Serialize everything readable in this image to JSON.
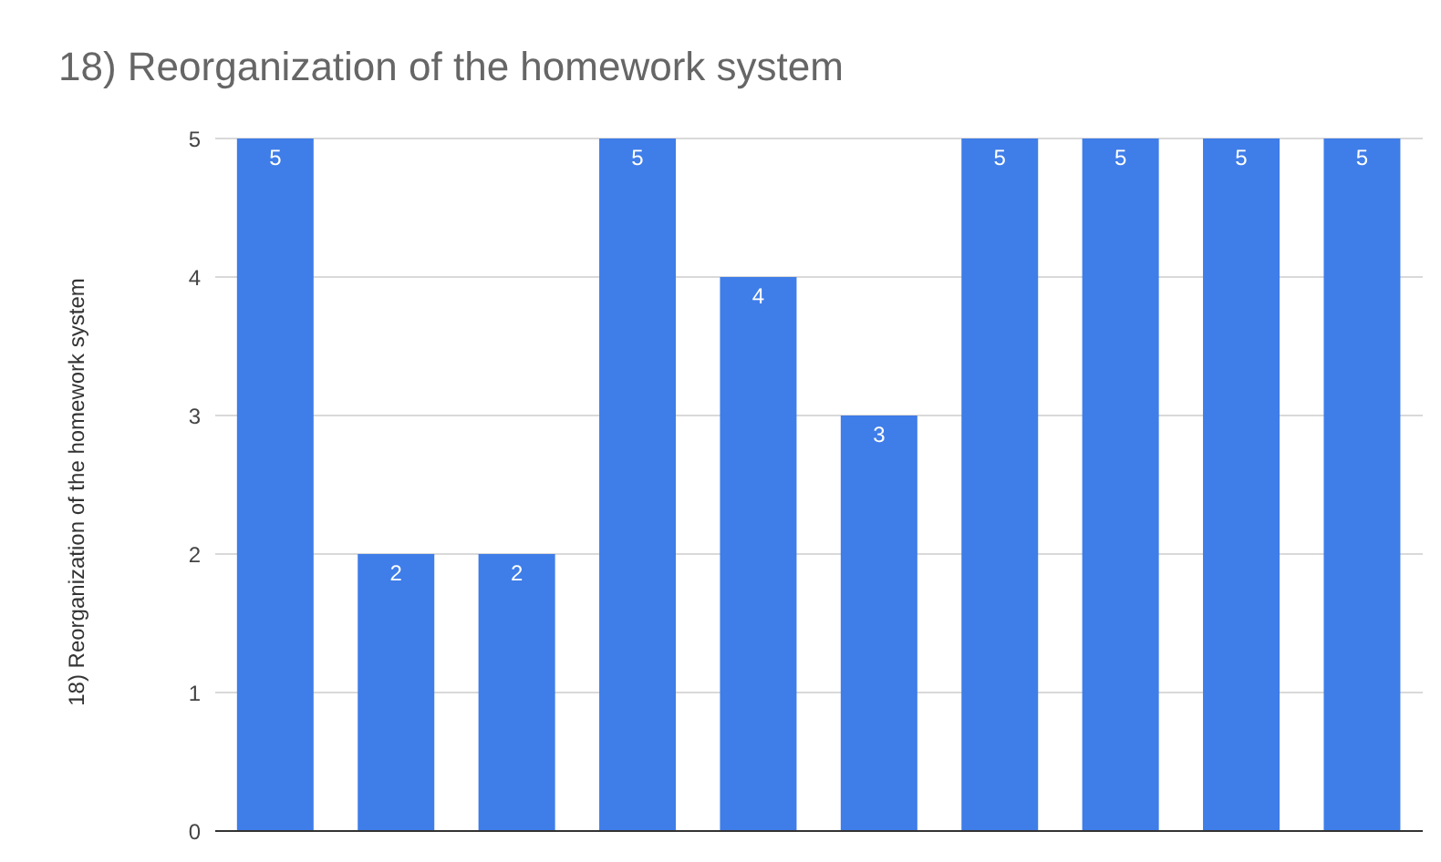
{
  "chart_data": {
    "type": "bar",
    "title": "18) Reorganization of the homework system",
    "ylabel": "18) Reorganization of the homework system",
    "categories": [
      null,
      null,
      null,
      null,
      null,
      null,
      null,
      null,
      null,
      null
    ],
    "values": [
      5,
      2,
      2,
      5,
      4,
      3,
      5,
      5,
      5,
      5
    ],
    "color": "#3f7de8",
    "ylim": [
      0,
      5
    ],
    "yticks": [
      0,
      1,
      2,
      3,
      4,
      5
    ],
    "grid": "y",
    "data_labels": true
  }
}
